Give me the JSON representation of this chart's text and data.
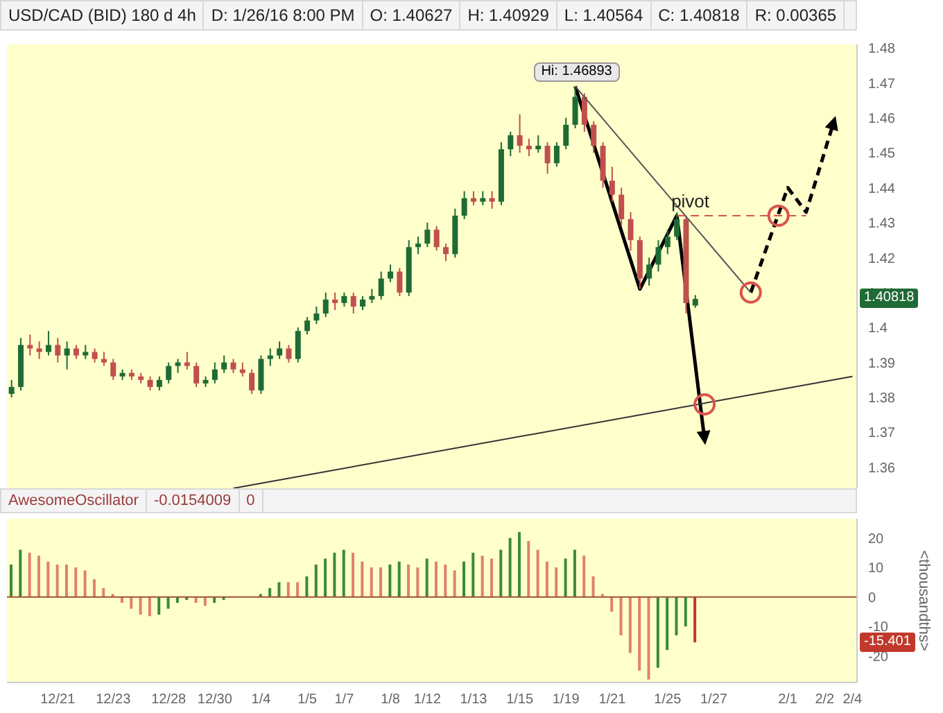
{
  "chart_data": [
    {
      "type": "candlestick",
      "title": "USD/CAD (BID) 180 d 4h",
      "annotations": [
        "D: 1/26/16 8:00 PM",
        "O: 1.40627",
        "H: 1.40929",
        "L: 1.40564",
        "C: 1.40818",
        "R: 0.00365",
        {
          "text": "Hi: 1.46893",
          "y": 1.46893
        },
        {
          "text": "1.40818",
          "y": 1.40818
        }
      ],
      "categories": [
        null,
        null,
        null,
        null,
        null,
        null,
        null,
        null,
        null,
        null,
        null,
        null,
        null,
        null,
        null,
        null,
        null,
        null,
        null,
        null,
        null,
        null,
        null,
        null,
        null,
        null,
        null,
        null,
        null,
        null,
        null,
        null,
        null,
        null,
        null,
        null,
        null,
        null,
        null,
        null,
        null,
        null,
        null,
        null,
        null,
        null,
        null,
        null,
        null,
        null,
        null,
        null,
        null,
        null,
        null,
        null,
        null,
        null,
        null,
        null,
        null,
        null,
        null,
        null,
        null,
        null,
        null,
        null,
        null,
        null,
        null,
        null,
        null,
        null,
        null,
        null,
        null,
        null,
        null,
        null,
        null,
        null,
        null,
        null,
        null,
        null,
        null,
        null,
        null,
        null,
        null,
        null
      ],
      "ohlc": [
        [
          1.381,
          1.385,
          1.38,
          1.383
        ],
        [
          1.383,
          1.397,
          1.382,
          1.395
        ],
        [
          1.395,
          1.398,
          1.392,
          1.394
        ],
        [
          1.394,
          1.396,
          1.391,
          1.393
        ],
        [
          1.393,
          1.399,
          1.392,
          1.395
        ],
        [
          1.395,
          1.397,
          1.39,
          1.392
        ],
        [
          1.392,
          1.396,
          1.388,
          1.394
        ],
        [
          1.394,
          1.395,
          1.391,
          1.392
        ],
        [
          1.392,
          1.395,
          1.391,
          1.393
        ],
        [
          1.393,
          1.394,
          1.39,
          1.391
        ],
        [
          1.391,
          1.393,
          1.389,
          1.39
        ],
        [
          1.39,
          1.391,
          1.385,
          1.386
        ],
        [
          1.386,
          1.388,
          1.385,
          1.387
        ],
        [
          1.387,
          1.388,
          1.385,
          1.386
        ],
        [
          1.386,
          1.387,
          1.384,
          1.385
        ],
        [
          1.385,
          1.386,
          1.382,
          1.383
        ],
        [
          1.383,
          1.386,
          1.382,
          1.385
        ],
        [
          1.385,
          1.39,
          1.384,
          1.389
        ],
        [
          1.389,
          1.391,
          1.387,
          1.39
        ],
        [
          1.39,
          1.393,
          1.388,
          1.389
        ],
        [
          1.389,
          1.39,
          1.383,
          1.384
        ],
        [
          1.384,
          1.386,
          1.383,
          1.385
        ],
        [
          1.385,
          1.39,
          1.384,
          1.388
        ],
        [
          1.388,
          1.392,
          1.387,
          1.39
        ],
        [
          1.39,
          1.391,
          1.387,
          1.388
        ],
        [
          1.388,
          1.39,
          1.386,
          1.387
        ],
        [
          1.387,
          1.388,
          1.381,
          1.382
        ],
        [
          1.382,
          1.392,
          1.381,
          1.391
        ],
        [
          1.391,
          1.394,
          1.389,
          1.392
        ],
        [
          1.392,
          1.396,
          1.391,
          1.394
        ],
        [
          1.394,
          1.395,
          1.39,
          1.391
        ],
        [
          1.391,
          1.4,
          1.39,
          1.399
        ],
        [
          1.399,
          1.403,
          1.398,
          1.402
        ],
        [
          1.402,
          1.406,
          1.401,
          1.404
        ],
        [
          1.404,
          1.41,
          1.403,
          1.408
        ],
        [
          1.408,
          1.41,
          1.405,
          1.407
        ],
        [
          1.407,
          1.41,
          1.406,
          1.409
        ],
        [
          1.409,
          1.41,
          1.404,
          1.406
        ],
        [
          1.406,
          1.409,
          1.405,
          1.408
        ],
        [
          1.408,
          1.411,
          1.407,
          1.409
        ],
        [
          1.409,
          1.416,
          1.408,
          1.414
        ],
        [
          1.414,
          1.418,
          1.413,
          1.416
        ],
        [
          1.416,
          1.417,
          1.409,
          1.41
        ],
        [
          1.41,
          1.425,
          1.409,
          1.423
        ],
        [
          1.423,
          1.426,
          1.421,
          1.424
        ],
        [
          1.424,
          1.43,
          1.423,
          1.428
        ],
        [
          1.428,
          1.429,
          1.422,
          1.423
        ],
        [
          1.423,
          1.424,
          1.419,
          1.421
        ],
        [
          1.421,
          1.434,
          1.42,
          1.432
        ],
        [
          1.432,
          1.439,
          1.431,
          1.437
        ],
        [
          1.437,
          1.439,
          1.435,
          1.436
        ],
        [
          1.436,
          1.439,
          1.435,
          1.437
        ],
        [
          1.437,
          1.439,
          1.434,
          1.436
        ],
        [
          1.436,
          1.453,
          1.435,
          1.451
        ],
        [
          1.451,
          1.456,
          1.449,
          1.455
        ],
        [
          1.455,
          1.461,
          1.45,
          1.452
        ],
        [
          1.452,
          1.454,
          1.449,
          1.451
        ],
        [
          1.451,
          1.455,
          1.45,
          1.452
        ],
        [
          1.452,
          1.453,
          1.444,
          1.447
        ],
        [
          1.447,
          1.453,
          1.446,
          1.452
        ],
        [
          1.452,
          1.46,
          1.451,
          1.458
        ],
        [
          1.458,
          1.46893,
          1.457,
          1.466
        ],
        [
          1.466,
          1.467,
          1.456,
          1.458
        ],
        [
          1.458,
          1.459,
          1.45,
          1.452
        ],
        [
          1.452,
          1.453,
          1.44,
          1.442
        ],
        [
          1.442,
          1.446,
          1.436,
          1.438
        ],
        [
          1.438,
          1.44,
          1.429,
          1.431
        ],
        [
          1.431,
          1.433,
          1.422,
          1.425
        ],
        [
          1.425,
          1.426,
          1.411,
          1.414
        ],
        [
          1.414,
          1.42,
          1.412,
          1.418
        ],
        [
          1.418,
          1.425,
          1.416,
          1.423
        ],
        [
          1.423,
          1.428,
          1.421,
          1.426
        ],
        [
          1.426,
          1.433,
          1.425,
          1.431
        ],
        [
          1.431,
          1.432,
          1.404,
          1.407
        ],
        [
          1.40627,
          1.40929,
          1.40564,
          1.40818
        ],
        null,
        null,
        null,
        null,
        null,
        null,
        null,
        null,
        null,
        null,
        null,
        null,
        null,
        null,
        null,
        null,
        null
      ],
      "colors": [
        "#1f6b34",
        "#1f6b34",
        "#c0504d",
        "#c0504d",
        "#1f6b34",
        "#c0504d",
        "#1f6b34",
        "#c0504d",
        "#1f6b34",
        "#c0504d",
        "#c0504d",
        "#c0504d",
        "#1f6b34",
        "#c0504d",
        "#c0504d",
        "#c0504d",
        "#1f6b34",
        "#1f6b34",
        "#1f6b34",
        "#c0504d",
        "#c0504d",
        "#1f6b34",
        "#1f6b34",
        "#1f6b34",
        "#c0504d",
        "#c0504d",
        "#c0504d",
        "#1f6b34",
        "#1f6b34",
        "#1f6b34",
        "#c0504d",
        "#1f6b34",
        "#1f6b34",
        "#1f6b34",
        "#1f6b34",
        "#c0504d",
        "#1f6b34",
        "#c0504d",
        "#1f6b34",
        "#1f6b34",
        "#1f6b34",
        "#1f6b34",
        "#c0504d",
        "#1f6b34",
        "#1f6b34",
        "#1f6b34",
        "#c0504d",
        "#c0504d",
        "#1f6b34",
        "#1f6b34",
        "#c0504d",
        "#1f6b34",
        "#c0504d",
        "#1f6b34",
        "#1f6b34",
        "#c0504d",
        "#c0504d",
        "#1f6b34",
        "#c0504d",
        "#1f6b34",
        "#1f6b34",
        "#1f6b34",
        "#c0504d",
        "#c0504d",
        "#c0504d",
        "#c0504d",
        "#c0504d",
        "#c0504d",
        "#c0504d",
        "#1f6b34",
        "#1f6b34",
        "#1f6b34",
        "#1f6b34",
        "#c0504d",
        "#1f6b34",
        null,
        null,
        null,
        null,
        null,
        null,
        null,
        null,
        null,
        null,
        null,
        null,
        null,
        null,
        null,
        null,
        null
      ],
      "series": [
        {
          "type": "line",
          "color": "#333333",
          "values": [
            null,
            null,
            null,
            null,
            null,
            null,
            null,
            null,
            null,
            null,
            null,
            null,
            null,
            null,
            null,
            null,
            null,
            null,
            null,
            null,
            null,
            null,
            null,
            null,
            1.354,
            null,
            null,
            null,
            null,
            null,
            null,
            null,
            null,
            null,
            null,
            null,
            null,
            null,
            null,
            null,
            null,
            null,
            null,
            null,
            null,
            null,
            null,
            null,
            null,
            null,
            null,
            null,
            null,
            null,
            null,
            null,
            null,
            null,
            null,
            null,
            null,
            null,
            null,
            null,
            null,
            null,
            null,
            null,
            null,
            null,
            null,
            null,
            null,
            null,
            null,
            null,
            null,
            null,
            null,
            null,
            null,
            null,
            null,
            null,
            null,
            null,
            null,
            null,
            null,
            null,
            null,
            1.386
          ]
        },
        {
          "type": "line",
          "color": "#555555",
          "values": [
            null,
            null,
            null,
            null,
            null,
            null,
            null,
            null,
            null,
            null,
            null,
            null,
            null,
            null,
            null,
            null,
            null,
            null,
            null,
            null,
            null,
            null,
            null,
            null,
            null,
            null,
            null,
            null,
            null,
            null,
            null,
            null,
            null,
            null,
            null,
            null,
            null,
            null,
            null,
            null,
            null,
            null,
            null,
            null,
            null,
            null,
            null,
            null,
            null,
            null,
            null,
            null,
            null,
            null,
            null,
            null,
            null,
            null,
            null,
            null,
            null,
            1.469,
            null,
            null,
            null,
            null,
            null,
            null,
            null,
            null,
            null,
            null,
            null,
            null,
            null,
            null,
            null,
            null,
            null,
            null,
            1.41,
            null,
            null,
            null,
            null,
            null,
            null,
            null,
            null,
            null,
            null,
            null
          ]
        },
        {
          "type": "line",
          "name": "pivot",
          "color": "#d9534f",
          "line_style": "dashed",
          "values": [
            null,
            null,
            null,
            null,
            null,
            null,
            null,
            null,
            null,
            null,
            null,
            null,
            null,
            null,
            null,
            null,
            null,
            null,
            null,
            null,
            null,
            null,
            null,
            null,
            null,
            null,
            null,
            null,
            null,
            null,
            null,
            null,
            null,
            null,
            null,
            null,
            null,
            null,
            null,
            null,
            null,
            null,
            null,
            null,
            null,
            null,
            null,
            null,
            null,
            null,
            null,
            null,
            null,
            null,
            null,
            null,
            null,
            null,
            null,
            null,
            null,
            null,
            null,
            null,
            null,
            null,
            null,
            null,
            null,
            null,
            null,
            null,
            1.432,
            null,
            null,
            null,
            null,
            null,
            null,
            null,
            null,
            null,
            null,
            null,
            null,
            null,
            1.432,
            null,
            null,
            null,
            null,
            null
          ]
        },
        {
          "type": "scatter",
          "color": "#d9534f",
          "marker": "circle",
          "values": [
            null,
            null,
            null,
            null,
            null,
            null,
            null,
            null,
            null,
            null,
            null,
            null,
            null,
            null,
            null,
            null,
            null,
            null,
            null,
            null,
            null,
            null,
            null,
            null,
            null,
            null,
            null,
            null,
            null,
            null,
            null,
            null,
            null,
            null,
            null,
            null,
            null,
            null,
            null,
            null,
            null,
            null,
            null,
            null,
            null,
            null,
            null,
            null,
            null,
            null,
            null,
            null,
            null,
            null,
            null,
            null,
            null,
            null,
            null,
            null,
            null,
            null,
            null,
            null,
            null,
            null,
            null,
            null,
            null,
            null,
            null,
            null,
            null,
            null,
            null,
            1.378,
            null,
            null,
            null,
            null,
            1.41,
            null,
            null,
            1.432,
            null,
            null,
            null,
            null,
            null,
            null,
            null,
            null
          ]
        }
      ],
      "ylim": [
        1.354,
        1.481
      ],
      "yticks": [
        1.36,
        1.37,
        1.38,
        1.39,
        1.4,
        1.41,
        1.42,
        1.43,
        1.44,
        1.45,
        1.46,
        1.47,
        1.48
      ],
      "tick_labels": "y"
    },
    {
      "type": "bar",
      "title": "AwesomeOscillator",
      "annotations": [
        "-0.0154009",
        "0",
        {
          "text": "-15.401",
          "y": -15.401
        }
      ],
      "ylabel": "<thousandths>",
      "categories": [
        null,
        null,
        null,
        null,
        null,
        "12/21",
        null,
        null,
        null,
        null,
        null,
        "12/23",
        null,
        null,
        null,
        null,
        null,
        "12/28",
        null,
        null,
        null,
        null,
        "12/30",
        null,
        null,
        null,
        null,
        "1/4",
        null,
        null,
        null,
        null,
        "1/5",
        null,
        null,
        null,
        "1/7",
        null,
        null,
        null,
        null,
        "1/8",
        null,
        null,
        null,
        "1/12",
        null,
        null,
        null,
        null,
        "1/13",
        null,
        null,
        null,
        null,
        "1/15",
        null,
        null,
        null,
        null,
        "1/19",
        null,
        null,
        null,
        null,
        "1/21",
        null,
        null,
        null,
        null,
        null,
        "1/25",
        null,
        null,
        null,
        null,
        "1/27",
        null,
        null,
        null,
        null,
        null,
        null,
        null,
        "2/1",
        null,
        null,
        null,
        "2/2",
        null,
        null,
        "2/4"
      ],
      "values": [
        11,
        16,
        15,
        14,
        12,
        11,
        11,
        10,
        9,
        6,
        3,
        1,
        -2,
        -4,
        -6,
        -6.5,
        -6,
        -4,
        -2,
        -1,
        -2,
        -3,
        -2,
        -1,
        null,
        null,
        null,
        1,
        3,
        5,
        5,
        5,
        7,
        11,
        13,
        15,
        16,
        15,
        12,
        10,
        10,
        11,
        12,
        11,
        10,
        13,
        12,
        11,
        9,
        12,
        15,
        14,
        13,
        16,
        20,
        22,
        19,
        16,
        12,
        10,
        13,
        16,
        14,
        7,
        1,
        -5,
        -13,
        -19,
        -25,
        -28,
        -24,
        -18,
        -13,
        -10,
        -15.401,
        null,
        null,
        null,
        null,
        null,
        null,
        null,
        null,
        null,
        null,
        null,
        null,
        null,
        null,
        null,
        null,
        null
      ],
      "colors": [
        "#3a8a3a",
        "#3a8a3a",
        "#e08070",
        "#e08070",
        "#e08070",
        "#e08070",
        "#e08070",
        "#e08070",
        "#e08070",
        "#e08070",
        "#e08070",
        "#e08070",
        "#e08070",
        "#e08070",
        "#e08070",
        "#e08070",
        "#3a8a3a",
        "#3a8a3a",
        "#3a8a3a",
        "#3a8a3a",
        "#e08070",
        "#e08070",
        "#3a8a3a",
        "#3a8a3a",
        "#3a8a3a",
        "#e08070",
        "#e08070",
        "#3a8a3a",
        "#3a8a3a",
        "#3a8a3a",
        "#e08070",
        "#e08070",
        "#3a8a3a",
        "#3a8a3a",
        "#3a8a3a",
        "#3a8a3a",
        "#3a8a3a",
        "#e08070",
        "#e08070",
        "#e08070",
        "#e08070",
        "#3a8a3a",
        "#3a8a3a",
        "#e08070",
        "#e08070",
        "#3a8a3a",
        "#e08070",
        "#e08070",
        "#e08070",
        "#3a8a3a",
        "#3a8a3a",
        "#e08070",
        "#e08070",
        "#3a8a3a",
        "#3a8a3a",
        "#3a8a3a",
        "#e08070",
        "#e08070",
        "#e08070",
        "#e08070",
        "#3a8a3a",
        "#3a8a3a",
        "#e08070",
        "#e08070",
        "#e08070",
        "#e08070",
        "#e08070",
        "#e08070",
        "#e08070",
        "#e08070",
        "#3a8a3a",
        "#3a8a3a",
        "#3a8a3a",
        "#3a8a3a",
        "#c0392b",
        null,
        null,
        null,
        null,
        null,
        null,
        null,
        null,
        null,
        null,
        null,
        null,
        null,
        null,
        null,
        null,
        null
      ],
      "ref_lines": [
        {
          "axis": "y",
          "value": 0,
          "color": "#a0522d"
        }
      ],
      "ylim": [
        -29,
        26.5
      ],
      "yticks": [
        -20,
        -10,
        0,
        10,
        20
      ]
    }
  ]
}
